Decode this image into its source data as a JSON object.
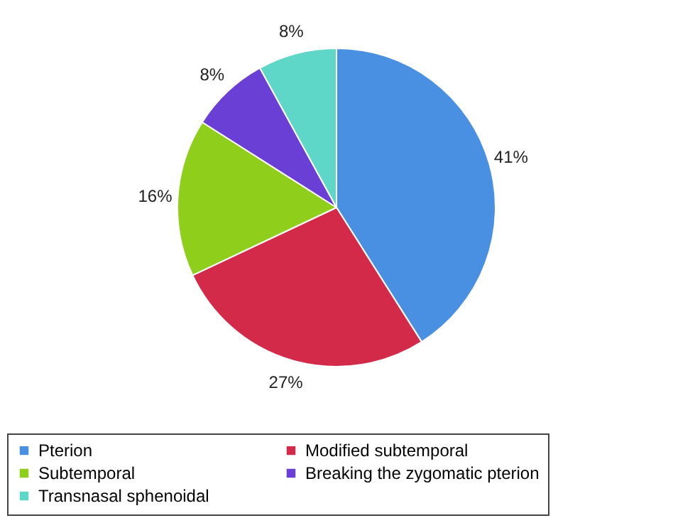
{
  "chart_data": {
    "type": "pie",
    "categories": [
      "Pterion",
      "Modified subtemporal",
      "Subtemporal",
      "Breaking the zygomatic pterion",
      "Transnasal sphenoidal"
    ],
    "values": [
      41,
      27,
      16,
      8,
      8
    ],
    "colors": [
      "#4a90e2",
      "#d42a4a",
      "#8fce1a",
      "#6a3fd6",
      "#5ed6c8"
    ],
    "value_labels": [
      "41%",
      "27%",
      "16%",
      "8%",
      "8%"
    ],
    "legend": "bottom"
  }
}
